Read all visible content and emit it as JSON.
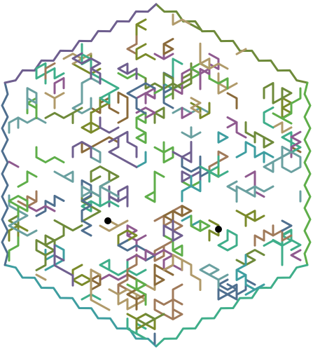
{
  "game": {
    "type": "hexagonal-maze",
    "wall_palette": [
      "#6e8a3a",
      "#5fae4a",
      "#3fae8a",
      "#3e9ea0",
      "#4f6f8f",
      "#6f5f8f",
      "#8f5a8f",
      "#a07a5a",
      "#8a6a3a",
      "#b09a6a",
      "#6aa0a0",
      "#7a8a2a"
    ],
    "markers": [
      {
        "name": "start-marker",
        "color": "#000000"
      },
      {
        "name": "goal-marker",
        "color": "#000000"
      }
    ]
  }
}
